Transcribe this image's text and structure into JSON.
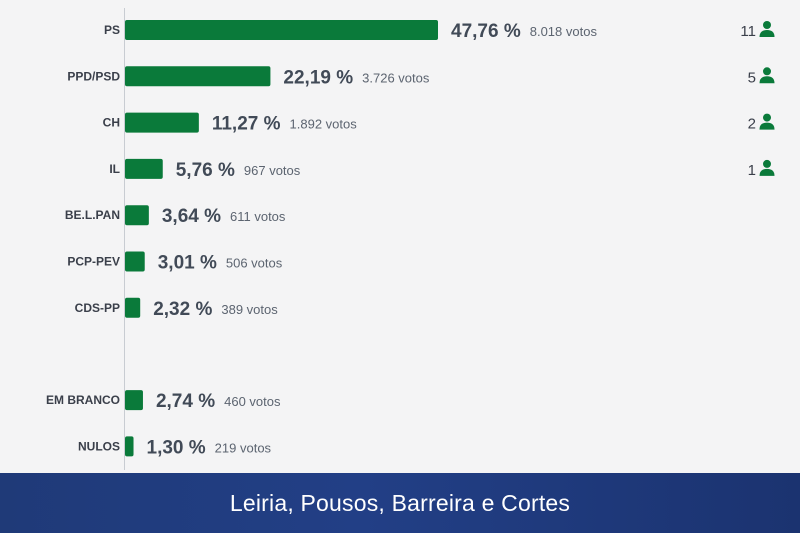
{
  "colors": {
    "bar": "#0a7a3a",
    "seat_icon": "#0a7a3a",
    "footer": "#1f3a78",
    "axis": "#c8ccd2"
  },
  "footer": {
    "title": "Leiria, Pousos, Barreira e Cortes"
  },
  "chart_data": {
    "type": "bar",
    "orientation": "horizontal",
    "categories": [
      "PS",
      "PPD/PSD",
      "CH",
      "IL",
      "BE.L.PAN",
      "PCP-PEV",
      "CDS-PP",
      "EM BRANCO",
      "NULOS"
    ],
    "values": [
      47.76,
      22.19,
      11.27,
      5.76,
      3.64,
      3.01,
      2.32,
      2.74,
      1.3
    ],
    "value_labels": [
      "47,76 %",
      "22,19 %",
      "11,27 %",
      "5,76 %",
      "3,64 %",
      "3,01 %",
      "2,32 %",
      "2,74 %",
      "1,30 %"
    ],
    "vote_labels": [
      "8.018 votos",
      "3.726 votos",
      "1.892 votos",
      "967 votos",
      "611 votos",
      "506 votos",
      "389 votos",
      "460 votos",
      "219 votos"
    ],
    "seats": [
      "11",
      "5",
      "2",
      "1",
      null,
      null,
      null,
      null,
      null
    ],
    "groups": [
      [
        0,
        1,
        2,
        3,
        4,
        5,
        6
      ],
      [
        7,
        8
      ]
    ],
    "xlim": [
      0,
      47.76
    ],
    "grid": false
  }
}
